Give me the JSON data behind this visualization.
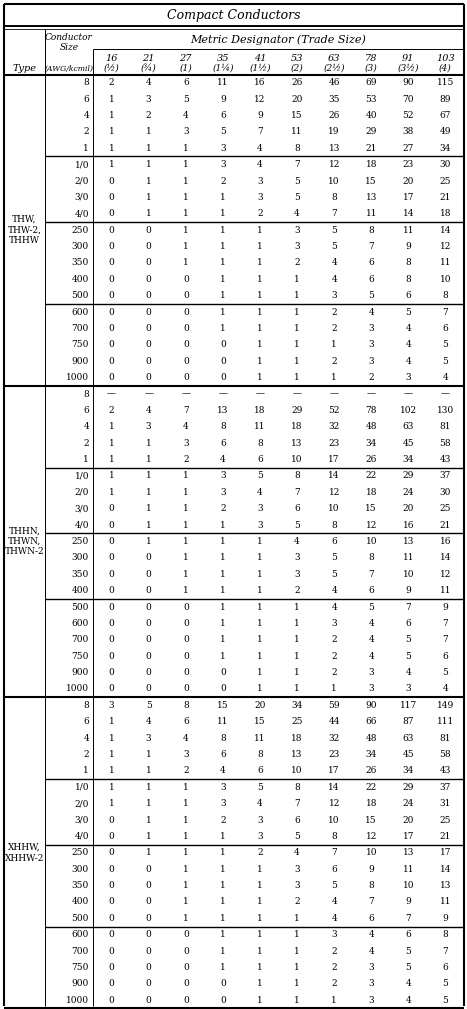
{
  "title": "Compact Conductors",
  "subtitle": "Metric Designator (Trade Size)",
  "col_header1": [
    "16",
    "21",
    "27",
    "35",
    "41",
    "53",
    "63",
    "78",
    "91",
    "103"
  ],
  "col_header2": [
    "(½)",
    "(¾)",
    "(1)",
    "(1¼)",
    "(1½)",
    "(2)",
    "(2½)",
    "(3)",
    "(3½)",
    "(4)"
  ],
  "sections": [
    {
      "type_label": [
        "THW,",
        "THW-2,",
        "THHW"
      ],
      "groups": [
        {
          "sizes": [
            "8",
            "6",
            "4",
            "2",
            "1"
          ],
          "values": [
            [
              "2",
              "4",
              "6",
              "11",
              "16",
              "26",
              "46",
              "69",
              "90",
              "115"
            ],
            [
              "1",
              "3",
              "5",
              "9",
              "12",
              "20",
              "35",
              "53",
              "70",
              "89"
            ],
            [
              "1",
              "2",
              "4",
              "6",
              "9",
              "15",
              "26",
              "40",
              "52",
              "67"
            ],
            [
              "1",
              "1",
              "3",
              "5",
              "7",
              "11",
              "19",
              "29",
              "38",
              "49"
            ],
            [
              "1",
              "1",
              "1",
              "3",
              "4",
              "8",
              "13",
              "21",
              "27",
              "34"
            ]
          ]
        },
        {
          "sizes": [
            "1/0",
            "2/0",
            "3/0",
            "4/0"
          ],
          "values": [
            [
              "1",
              "1",
              "1",
              "3",
              "4",
              "7",
              "12",
              "18",
              "23",
              "30"
            ],
            [
              "0",
              "1",
              "1",
              "2",
              "3",
              "5",
              "10",
              "15",
              "20",
              "25"
            ],
            [
              "0",
              "1",
              "1",
              "1",
              "3",
              "5",
              "8",
              "13",
              "17",
              "21"
            ],
            [
              "0",
              "1",
              "1",
              "1",
              "2",
              "4",
              "7",
              "11",
              "14",
              "18"
            ]
          ]
        },
        {
          "sizes": [
            "250",
            "300",
            "350",
            "400",
            "500"
          ],
          "values": [
            [
              "0",
              "0",
              "1",
              "1",
              "1",
              "3",
              "5",
              "8",
              "11",
              "14"
            ],
            [
              "0",
              "0",
              "1",
              "1",
              "1",
              "3",
              "5",
              "7",
              "9",
              "12"
            ],
            [
              "0",
              "0",
              "1",
              "1",
              "1",
              "2",
              "4",
              "6",
              "8",
              "11"
            ],
            [
              "0",
              "0",
              "0",
              "1",
              "1",
              "1",
              "4",
              "6",
              "8",
              "10"
            ],
            [
              "0",
              "0",
              "0",
              "1",
              "1",
              "1",
              "3",
              "5",
              "6",
              "8"
            ]
          ]
        },
        {
          "sizes": [
            "600",
            "700",
            "750",
            "900",
            "1000"
          ],
          "values": [
            [
              "0",
              "0",
              "0",
              "1",
              "1",
              "1",
              "2",
              "4",
              "5",
              "7"
            ],
            [
              "0",
              "0",
              "0",
              "1",
              "1",
              "1",
              "2",
              "3",
              "4",
              "6"
            ],
            [
              "0",
              "0",
              "0",
              "0",
              "1",
              "1",
              "1",
              "3",
              "4",
              "5"
            ],
            [
              "0",
              "0",
              "0",
              "0",
              "1",
              "1",
              "2",
              "3",
              "4",
              "5"
            ],
            [
              "0",
              "0",
              "0",
              "0",
              "1",
              "1",
              "1",
              "2",
              "3",
              "4"
            ]
          ]
        }
      ]
    },
    {
      "type_label": [
        "THHN,",
        "THWN,",
        "THWN-2"
      ],
      "groups": [
        {
          "sizes": [
            "8",
            "6",
            "4",
            "2",
            "1"
          ],
          "values": [
            [
              "—",
              "—",
              "—",
              "—",
              "—",
              "—",
              "—",
              "—",
              "—",
              "—"
            ],
            [
              "2",
              "4",
              "7",
              "13",
              "18",
              "29",
              "52",
              "78",
              "102",
              "130"
            ],
            [
              "1",
              "3",
              "4",
              "8",
              "11",
              "18",
              "32",
              "48",
              "63",
              "81"
            ],
            [
              "1",
              "1",
              "3",
              "6",
              "8",
              "13",
              "23",
              "34",
              "45",
              "58"
            ],
            [
              "1",
              "1",
              "2",
              "4",
              "6",
              "10",
              "17",
              "26",
              "34",
              "43"
            ]
          ]
        },
        {
          "sizes": [
            "1/0",
            "2/0",
            "3/0",
            "4/0"
          ],
          "values": [
            [
              "1",
              "1",
              "1",
              "3",
              "5",
              "8",
              "14",
              "22",
              "29",
              "37"
            ],
            [
              "1",
              "1",
              "1",
              "3",
              "4",
              "7",
              "12",
              "18",
              "24",
              "30"
            ],
            [
              "0",
              "1",
              "1",
              "2",
              "3",
              "6",
              "10",
              "15",
              "20",
              "25"
            ],
            [
              "0",
              "1",
              "1",
              "1",
              "3",
              "5",
              "8",
              "12",
              "16",
              "21"
            ]
          ]
        },
        {
          "sizes": [
            "250",
            "300",
            "350",
            "400"
          ],
          "values": [
            [
              "0",
              "1",
              "1",
              "1",
              "1",
              "4",
              "6",
              "10",
              "13",
              "16"
            ],
            [
              "0",
              "0",
              "1",
              "1",
              "1",
              "3",
              "5",
              "8",
              "11",
              "14"
            ],
            [
              "0",
              "0",
              "1",
              "1",
              "1",
              "3",
              "5",
              "7",
              "10",
              "12"
            ],
            [
              "0",
              "0",
              "1",
              "1",
              "1",
              "2",
              "4",
              "6",
              "9",
              "11"
            ]
          ]
        },
        {
          "sizes": [
            "500",
            "600",
            "700",
            "750",
            "900",
            "1000"
          ],
          "values": [
            [
              "0",
              "0",
              "0",
              "1",
              "1",
              "1",
              "4",
              "5",
              "7",
              "9"
            ],
            [
              "0",
              "0",
              "0",
              "1",
              "1",
              "1",
              "3",
              "4",
              "6",
              "7"
            ],
            [
              "0",
              "0",
              "0",
              "1",
              "1",
              "1",
              "2",
              "4",
              "5",
              "7"
            ],
            [
              "0",
              "0",
              "0",
              "1",
              "1",
              "1",
              "2",
              "4",
              "5",
              "6"
            ],
            [
              "0",
              "0",
              "0",
              "0",
              "1",
              "1",
              "2",
              "3",
              "4",
              "5"
            ],
            [
              "0",
              "0",
              "0",
              "0",
              "1",
              "1",
              "1",
              "3",
              "3",
              "4"
            ]
          ]
        }
      ]
    },
    {
      "type_label": [
        "XHHW,",
        "XHHW-2"
      ],
      "groups": [
        {
          "sizes": [
            "8",
            "6",
            "4",
            "2",
            "1"
          ],
          "values": [
            [
              "3",
              "5",
              "8",
              "15",
              "20",
              "34",
              "59",
              "90",
              "117",
              "149"
            ],
            [
              "1",
              "4",
              "6",
              "11",
              "15",
              "25",
              "44",
              "66",
              "87",
              "111"
            ],
            [
              "1",
              "3",
              "4",
              "8",
              "11",
              "18",
              "32",
              "48",
              "63",
              "81"
            ],
            [
              "1",
              "1",
              "3",
              "6",
              "8",
              "13",
              "23",
              "34",
              "45",
              "58"
            ],
            [
              "1",
              "1",
              "2",
              "4",
              "6",
              "10",
              "17",
              "26",
              "34",
              "43"
            ]
          ]
        },
        {
          "sizes": [
            "1/0",
            "2/0",
            "3/0",
            "4/0"
          ],
          "values": [
            [
              "1",
              "1",
              "1",
              "3",
              "5",
              "8",
              "14",
              "22",
              "29",
              "37"
            ],
            [
              "1",
              "1",
              "1",
              "3",
              "4",
              "7",
              "12",
              "18",
              "24",
              "31"
            ],
            [
              "0",
              "1",
              "1",
              "2",
              "3",
              "6",
              "10",
              "15",
              "20",
              "25"
            ],
            [
              "0",
              "1",
              "1",
              "1",
              "3",
              "5",
              "8",
              "12",
              "17",
              "21"
            ]
          ]
        },
        {
          "sizes": [
            "250",
            "300",
            "350",
            "400",
            "500"
          ],
          "values": [
            [
              "0",
              "1",
              "1",
              "1",
              "2",
              "4",
              "7",
              "10",
              "13",
              "17"
            ],
            [
              "0",
              "0",
              "1",
              "1",
              "1",
              "3",
              "6",
              "9",
              "11",
              "14"
            ],
            [
              "0",
              "0",
              "1",
              "1",
              "1",
              "3",
              "5",
              "8",
              "10",
              "13"
            ],
            [
              "0",
              "0",
              "1",
              "1",
              "1",
              "2",
              "4",
              "7",
              "9",
              "11"
            ],
            [
              "0",
              "0",
              "1",
              "1",
              "1",
              "1",
              "4",
              "6",
              "7",
              "9"
            ]
          ]
        },
        {
          "sizes": [
            "600",
            "700",
            "750",
            "900",
            "1000"
          ],
          "values": [
            [
              "0",
              "0",
              "0",
              "1",
              "1",
              "1",
              "3",
              "4",
              "6",
              "8"
            ],
            [
              "0",
              "0",
              "0",
              "1",
              "1",
              "1",
              "2",
              "4",
              "5",
              "7"
            ],
            [
              "0",
              "0",
              "0",
              "1",
              "1",
              "1",
              "2",
              "3",
              "5",
              "6"
            ],
            [
              "0",
              "0",
              "0",
              "0",
              "1",
              "1",
              "2",
              "3",
              "4",
              "5"
            ],
            [
              "0",
              "0",
              "0",
              "0",
              "1",
              "1",
              "1",
              "3",
              "4",
              "5"
            ]
          ]
        }
      ]
    }
  ]
}
